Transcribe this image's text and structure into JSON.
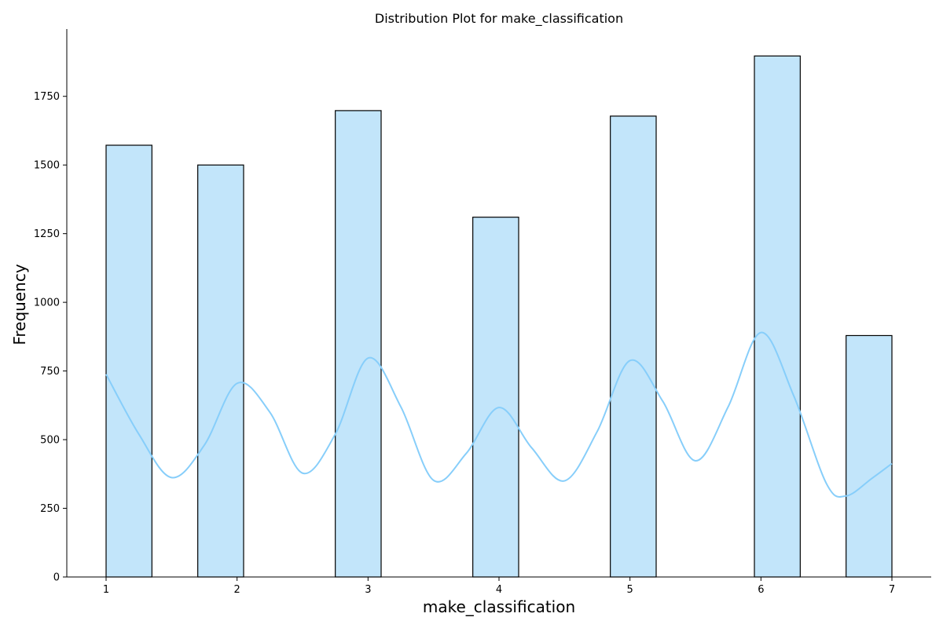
{
  "chart_data": {
    "type": "bar",
    "title": "Distribution Plot for make_classification",
    "xlabel": "make_classification",
    "ylabel": "Frequency",
    "bins": [
      {
        "start": 1.0,
        "end": 1.35,
        "value": 1572
      },
      {
        "start": 1.7,
        "end": 2.05,
        "value": 1500
      },
      {
        "start": 2.75,
        "end": 3.1,
        "value": 1698
      },
      {
        "start": 3.8,
        "end": 4.15,
        "value": 1310
      },
      {
        "start": 4.85,
        "end": 5.2,
        "value": 1678
      },
      {
        "start": 5.95,
        "end": 6.3,
        "value": 1897
      },
      {
        "start": 6.65,
        "end": 7.0,
        "value": 879
      }
    ],
    "kde": {
      "x": [
        1.0,
        1.25,
        1.5,
        1.75,
        2.0,
        2.25,
        2.5,
        2.75,
        3.0,
        3.25,
        3.5,
        3.75,
        4.0,
        4.25,
        4.5,
        4.75,
        5.0,
        5.25,
        5.5,
        5.75,
        6.0,
        6.25,
        6.5,
        6.65,
        6.85,
        7.0
      ],
      "y": [
        738,
        520,
        362,
        480,
        705,
        600,
        378,
        520,
        797,
        620,
        352,
        450,
        617,
        470,
        350,
        530,
        788,
        640,
        423,
        620,
        890,
        660,
        340,
        295,
        360,
        413
      ]
    },
    "xticks": [
      1,
      2,
      3,
      4,
      5,
      6,
      7
    ],
    "yticks": [
      0,
      250,
      500,
      750,
      1000,
      1250,
      1500,
      1750
    ],
    "xlim": [
      0.7,
      7.3
    ],
    "ylim": [
      0,
      1995
    ],
    "colors": {
      "bar_fill": "#c2e5fa",
      "bar_edge": "#000000",
      "kde_line": "#87cefa"
    }
  }
}
